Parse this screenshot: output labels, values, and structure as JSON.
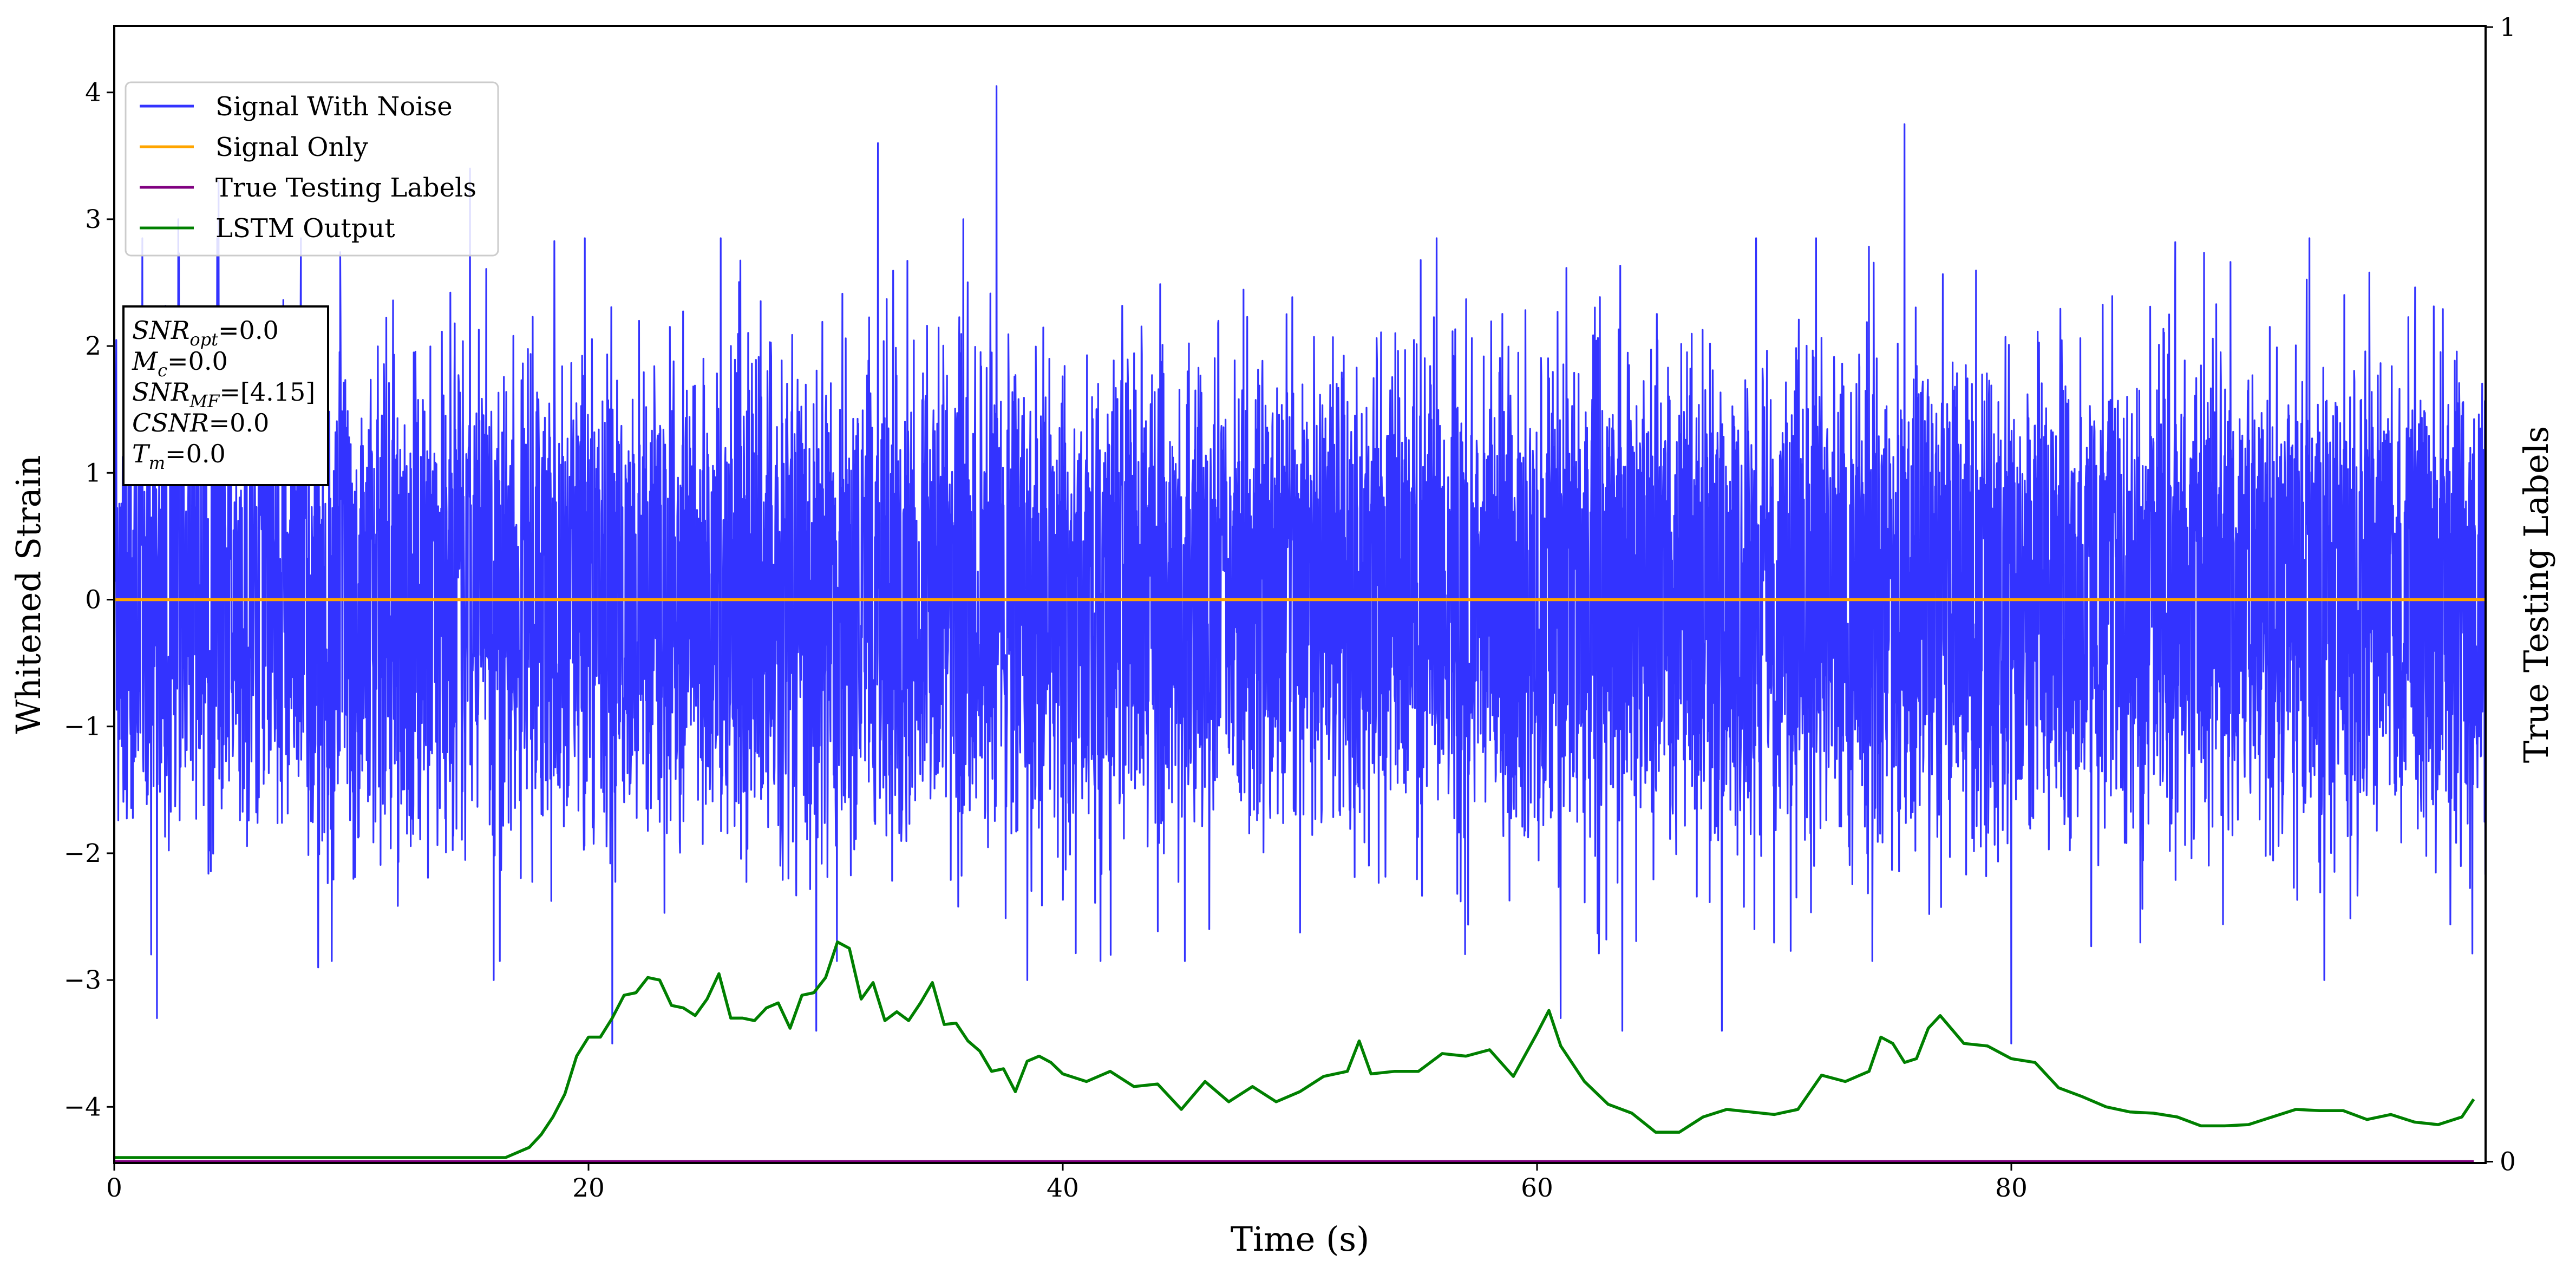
{
  "chart_data": {
    "type": "line",
    "xlabel": "Time (s)",
    "ylabel": "Whitened Strain",
    "y2label": "True Testing Labels",
    "xlim": [
      0,
      100
    ],
    "ylim": [
      -4.5,
      4.5
    ],
    "y2lim": [
      0,
      1
    ],
    "x_ticks": [
      "0",
      "20",
      "40",
      "60",
      "80"
    ],
    "y_ticks": [
      "4",
      "3",
      "2",
      "1",
      "0",
      "−1",
      "−2",
      "−3",
      "−4"
    ],
    "y2_ticks": [
      "0",
      "1"
    ],
    "grid": false,
    "legend_position": "upper-left",
    "legend": [
      "Signal With Noise",
      "Signal Only",
      "True Testing Labels",
      "LSTM Output"
    ],
    "annotation_lines": [
      {
        "var": "SNR",
        "sub": "opt",
        "value": "=0.0"
      },
      {
        "var": "M",
        "sub": "c",
        "value": "=0.0"
      },
      {
        "var": "SNR",
        "sub": "MF",
        "value": "=[4.15]"
      },
      {
        "var": "CSNR",
        "sub": "",
        "value": "=0.0"
      },
      {
        "var": "T",
        "sub": "m",
        "value": "=0.0"
      }
    ],
    "series": [
      {
        "name": "Signal With Noise",
        "color": "#3333ff",
        "axis": "left",
        "description_peaks": [
          {
            "x": 1.8,
            "y": -3.3
          },
          {
            "x": 2.7,
            "y": 3.0
          },
          {
            "x": 4.4,
            "y": 3.3
          },
          {
            "x": 8.6,
            "y": -2.9
          },
          {
            "x": 15.0,
            "y": 3.4
          },
          {
            "x": 16.0,
            "y": -3.0
          },
          {
            "x": 21.0,
            "y": -3.5
          },
          {
            "x": 29.6,
            "y": -3.4
          },
          {
            "x": 32.2,
            "y": 3.6
          },
          {
            "x": 35.8,
            "y": 3.0
          },
          {
            "x": 37.2,
            "y": 4.05
          },
          {
            "x": 38.5,
            "y": -3.0
          },
          {
            "x": 61.0,
            "y": -3.3
          },
          {
            "x": 63.6,
            "y": -3.4
          },
          {
            "x": 67.8,
            "y": -3.4
          },
          {
            "x": 75.5,
            "y": 3.75
          },
          {
            "x": 80.0,
            "y": -3.5
          },
          {
            "x": 93.2,
            "y": -3.0
          }
        ]
      },
      {
        "name": "Signal Only",
        "color": "#ffa500",
        "axis": "left",
        "x": [
          0,
          100
        ],
        "y": [
          0,
          0
        ]
      },
      {
        "name": "True Testing Labels",
        "color": "#800080",
        "axis": "right",
        "x": [
          0,
          99.5
        ],
        "y": [
          0,
          0
        ]
      },
      {
        "name": "LSTM Output",
        "color": "#008000",
        "axis": "left",
        "x": [
          0,
          16.5,
          17.5,
          18.0,
          18.5,
          19.0,
          19.5,
          20.0,
          20.5,
          21.0,
          21.5,
          22.0,
          22.5,
          23.0,
          23.5,
          24.0,
          24.5,
          25.0,
          25.5,
          26.0,
          26.5,
          27.0,
          27.5,
          28.0,
          28.5,
          29.0,
          29.5,
          30.0,
          30.5,
          31.0,
          31.5,
          32.0,
          32.5,
          33.0,
          33.5,
          34.0,
          34.5,
          35.0,
          35.5,
          36.0,
          36.5,
          37.0,
          37.5,
          38.0,
          38.5,
          39.0,
          39.5,
          40.0,
          41.0,
          42.0,
          43.0,
          44.0,
          45.0,
          46.0,
          47.0,
          48.0,
          49.0,
          50.0,
          51.0,
          52.0,
          52.5,
          53.0,
          54.0,
          55.0,
          56.0,
          57.0,
          58.0,
          59.0,
          60.0,
          60.5,
          61.0,
          62.0,
          63.0,
          64.0,
          65.0,
          66.0,
          67.0,
          68.0,
          69.0,
          70.0,
          71.0,
          72.0,
          73.0,
          74.0,
          74.5,
          75.0,
          75.5,
          76.0,
          76.5,
          77.0,
          78.0,
          79.0,
          80.0,
          81.0,
          82.0,
          83.0,
          84.0,
          85.0,
          86.0,
          87.0,
          88.0,
          89.0,
          90.0,
          91.0,
          92.0,
          93.0,
          94.0,
          95.0,
          96.0,
          97.0,
          98.0,
          99.0,
          99.5
        ],
        "y": [
          -4.4,
          -4.4,
          -4.32,
          -4.22,
          -4.08,
          -3.9,
          -3.6,
          -3.45,
          -3.45,
          -3.3,
          -3.12,
          -3.1,
          -2.98,
          -3.0,
          -3.2,
          -3.22,
          -3.28,
          -3.15,
          -2.95,
          -3.3,
          -3.3,
          -3.32,
          -3.22,
          -3.18,
          -3.38,
          -3.12,
          -3.1,
          -2.98,
          -2.7,
          -2.75,
          -3.15,
          -3.02,
          -3.32,
          -3.25,
          -3.32,
          -3.18,
          -3.02,
          -3.35,
          -3.34,
          -3.48,
          -3.56,
          -3.72,
          -3.7,
          -3.88,
          -3.64,
          -3.6,
          -3.65,
          -3.74,
          -3.8,
          -3.72,
          -3.84,
          -3.82,
          -4.02,
          -3.8,
          -3.96,
          -3.84,
          -3.96,
          -3.88,
          -3.76,
          -3.72,
          -3.48,
          -3.74,
          -3.72,
          -3.72,
          -3.58,
          -3.6,
          -3.55,
          -3.76,
          -3.42,
          -3.24,
          -3.52,
          -3.8,
          -3.98,
          -4.05,
          -4.2,
          -4.2,
          -4.08,
          -4.02,
          -4.04,
          -4.06,
          -4.02,
          -3.75,
          -3.8,
          -3.72,
          -3.45,
          -3.5,
          -3.65,
          -3.62,
          -3.38,
          -3.28,
          -3.5,
          -3.52,
          -3.62,
          -3.65,
          -3.85,
          -3.92,
          -4.0,
          -4.04,
          -4.05,
          -4.08,
          -4.15,
          -4.15,
          -4.14,
          -4.08,
          -4.02,
          -4.03,
          -4.03,
          -4.1,
          -4.06,
          -4.12,
          -4.14,
          -4.08,
          -3.94
        ]
      }
    ]
  }
}
